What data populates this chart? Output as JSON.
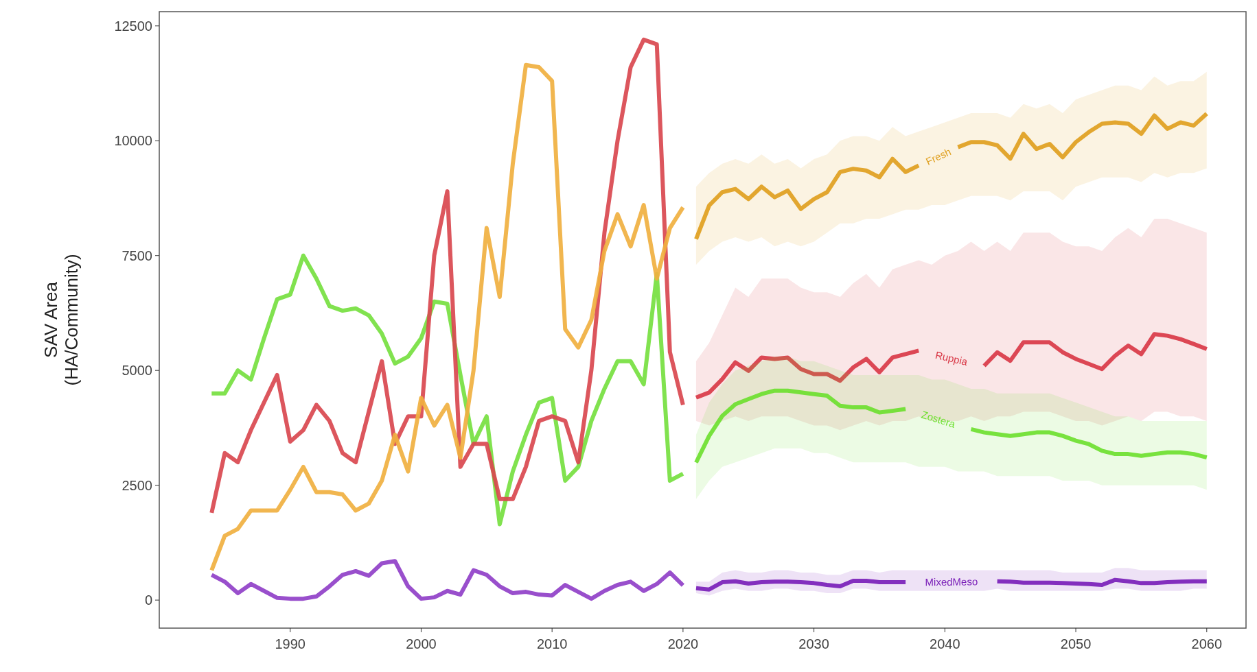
{
  "chart_data": {
    "type": "line",
    "ylabel": "SAV Area\n(HA/Community)",
    "xlim": [
      1980,
      2063
    ],
    "ylim": [
      -610,
      12810
    ],
    "xticks": [
      1990,
      2000,
      2010,
      2020,
      2030,
      2040,
      2050,
      2060
    ],
    "yticks": [
      0,
      2500,
      5000,
      7500,
      10000,
      12500
    ],
    "grid": false,
    "series": [
      {
        "color": "#76e040",
        "x": [
          1984,
          1985,
          1986,
          1987,
          1988,
          1989,
          1990,
          1991,
          1992,
          1993,
          1994,
          1995,
          1996,
          1997,
          1998,
          1999,
          2000,
          2001,
          2002,
          2003,
          2004,
          2005,
          2006,
          2007,
          2008,
          2009,
          2010,
          2011,
          2012,
          2013,
          2014,
          2015,
          2016,
          2017,
          2018,
          2019,
          2020
        ],
        "values": [
          4500,
          4500,
          5000,
          4800,
          5700,
          6550,
          6650,
          7500,
          7000,
          6400,
          6300,
          6350,
          6200,
          5800,
          5150,
          5300,
          5700,
          6500,
          6450,
          4900,
          3400,
          4000,
          1650,
          2800,
          3600,
          4300,
          4400,
          2600,
          2900,
          3900,
          4600,
          5200,
          5200,
          4700,
          7100,
          2600,
          2750
        ]
      },
      {
        "color": "#d9484f",
        "x": [
          1984,
          1985,
          1986,
          1987,
          1988,
          1989,
          1990,
          1991,
          1992,
          1993,
          1994,
          1995,
          1996,
          1997,
          1998,
          1999,
          2000,
          2001,
          2002,
          2003,
          2004,
          2005,
          2006,
          2007,
          2008,
          2009,
          2010,
          2011,
          2012,
          2013,
          2014,
          2015,
          2016,
          2017,
          2018,
          2019,
          2020
        ],
        "values": [
          1900,
          3200,
          3000,
          3700,
          4300,
          4900,
          3450,
          3700,
          4250,
          3900,
          3200,
          3000,
          4100,
          5200,
          3400,
          4000,
          4000,
          7500,
          8900,
          2900,
          3400,
          3400,
          2200,
          2200,
          2900,
          3900,
          4000,
          3900,
          3000,
          5000,
          8000,
          10000,
          11600,
          12200,
          12100,
          5400,
          4250
        ]
      },
      {
        "color": "#f0b040",
        "x": [
          1984,
          1985,
          1986,
          1987,
          1988,
          1989,
          1990,
          1991,
          1992,
          1993,
          1994,
          1995,
          1996,
          1997,
          1998,
          1999,
          2000,
          2001,
          2002,
          2003,
          2004,
          2005,
          2006,
          2007,
          2008,
          2009,
          2010,
          2011,
          2012,
          2013,
          2014,
          2015,
          2016,
          2017,
          2018,
          2019,
          2020
        ],
        "values": [
          650,
          1400,
          1550,
          1950,
          1950,
          1950,
          2400,
          2900,
          2350,
          2350,
          2300,
          1950,
          2100,
          2600,
          3600,
          2800,
          4400,
          3800,
          4250,
          3100,
          5000,
          8100,
          6600,
          9500,
          11650,
          11600,
          11300,
          5900,
          5500,
          6100,
          7600,
          8400,
          7700,
          8600,
          7000,
          8100,
          8550
        ]
      },
      {
        "color": "#9040c8",
        "x": [
          1984,
          1985,
          1986,
          1987,
          1988,
          1989,
          1990,
          1991,
          1992,
          1993,
          1994,
          1995,
          1996,
          1997,
          1998,
          1999,
          2000,
          2001,
          2002,
          2003,
          2004,
          2005,
          2006,
          2007,
          2008,
          2009,
          2010,
          2011,
          2012,
          2013,
          2014,
          2015,
          2016,
          2017,
          2018,
          2019,
          2020
        ],
        "values": [
          550,
          400,
          150,
          350,
          200,
          50,
          30,
          30,
          80,
          300,
          550,
          630,
          530,
          800,
          850,
          300,
          30,
          60,
          200,
          120,
          650,
          550,
          300,
          150,
          180,
          120,
          100,
          330,
          180,
          30,
          200,
          330,
          400,
          200,
          350,
          600,
          320
        ]
      },
      {
        "name": "Fresh",
        "color": "#e0a020",
        "x": [
          2021,
          2022,
          2023,
          2024,
          2025,
          2026,
          2027,
          2028,
          2029,
          2030,
          2031,
          2032,
          2033,
          2034,
          2035,
          2036,
          2037,
          2038,
          2039,
          2040,
          2041,
          2042,
          2043,
          2044,
          2045,
          2046,
          2047,
          2048,
          2049,
          2050,
          2051,
          2052,
          2053,
          2054,
          2055,
          2056,
          2057,
          2058,
          2059,
          2060
        ],
        "values": [
          7860,
          8590,
          8880,
          8950,
          8730,
          9000,
          8770,
          8915,
          8515,
          8730,
          8880,
          9320,
          9390,
          9350,
          9205,
          9605,
          9320,
          9460,
          null,
          null,
          9860,
          9970,
          9970,
          9900,
          9610,
          10150,
          9820,
          9930,
          9640,
          9970,
          10190,
          10370,
          10400,
          10370,
          10150,
          10550,
          10260,
          10400,
          10330,
          10590
        ],
        "lower": [
          7300,
          7600,
          7800,
          7900,
          7800,
          7900,
          7700,
          7800,
          7700,
          7800,
          8000,
          8200,
          8200,
          8300,
          8300,
          8400,
          8500,
          8500,
          8600,
          8600,
          8700,
          8800,
          8800,
          8800,
          8700,
          8900,
          8900,
          8900,
          8700,
          9000,
          9100,
          9200,
          9200,
          9200,
          9100,
          9300,
          9200,
          9300,
          9300,
          9400
        ],
        "upper": [
          9000,
          9300,
          9500,
          9600,
          9500,
          9700,
          9500,
          9600,
          9400,
          9600,
          9700,
          10000,
          10100,
          10100,
          10000,
          10300,
          10100,
          10200,
          10300,
          10400,
          10500,
          10600,
          10600,
          10600,
          10500,
          10800,
          10700,
          10800,
          10600,
          10900,
          11000,
          11100,
          11200,
          11200,
          11100,
          11400,
          11200,
          11300,
          11300,
          11500
        ]
      },
      {
        "name": "Ruppia",
        "color": "#d93a48",
        "x": [
          2021,
          2022,
          2023,
          2024,
          2025,
          2026,
          2027,
          2028,
          2029,
          2030,
          2031,
          2032,
          2033,
          2034,
          2035,
          2036,
          2037,
          2038,
          2039,
          2040,
          2041,
          2042,
          2043,
          2044,
          2045,
          2046,
          2047,
          2048,
          2049,
          2050,
          2051,
          2052,
          2053,
          2054,
          2055,
          2056,
          2057,
          2058,
          2059,
          2060
        ],
        "values": [
          4410,
          4520,
          4810,
          5175,
          4990,
          5280,
          5250,
          5280,
          5030,
          4920,
          4920,
          4775,
          5065,
          5250,
          4960,
          5280,
          5355,
          5430,
          null,
          null,
          null,
          null,
          5100,
          5395,
          5210,
          5610,
          5610,
          5610,
          5395,
          5250,
          5140,
          5030,
          5320,
          5540,
          5355,
          5790,
          5755,
          5680,
          5575,
          5465
        ],
        "lower": [
          3900,
          3800,
          3900,
          4000,
          3900,
          4000,
          4000,
          4000,
          3900,
          3800,
          3800,
          3700,
          3800,
          3900,
          3800,
          3900,
          3900,
          4000,
          3900,
          3900,
          3900,
          4000,
          3900,
          4000,
          4000,
          4100,
          4100,
          4100,
          4000,
          3900,
          3900,
          3800,
          3900,
          4000,
          3900,
          4100,
          4100,
          4000,
          4000,
          3900
        ],
        "upper": [
          5200,
          5600,
          6200,
          6800,
          6600,
          7000,
          7000,
          7000,
          6800,
          6700,
          6700,
          6600,
          6900,
          7100,
          6800,
          7200,
          7300,
          7400,
          7300,
          7500,
          7600,
          7800,
          7600,
          7800,
          7600,
          8000,
          8000,
          8000,
          7800,
          7700,
          7700,
          7600,
          7900,
          8100,
          7900,
          8300,
          8300,
          8200,
          8100,
          8000
        ]
      },
      {
        "name": "Zostera",
        "color": "#6ee030",
        "x": [
          2021,
          2022,
          2023,
          2024,
          2025,
          2026,
          2027,
          2028,
          2029,
          2030,
          2031,
          2032,
          2033,
          2034,
          2035,
          2036,
          2037,
          2038,
          2039,
          2040,
          2041,
          2042,
          2043,
          2044,
          2045,
          2046,
          2047,
          2048,
          2049,
          2050,
          2051,
          2052,
          2053,
          2054,
          2055,
          2056,
          2057,
          2058,
          2059,
          2060
        ],
        "values": [
          2995,
          3575,
          4010,
          4265,
          4375,
          4485,
          4560,
          4560,
          4520,
          4485,
          4450,
          4230,
          4195,
          4195,
          4085,
          4120,
          4160,
          null,
          null,
          null,
          null,
          3720,
          3650,
          3610,
          3575,
          3610,
          3650,
          3650,
          3575,
          3470,
          3395,
          3250,
          3180,
          3180,
          3140,
          3180,
          3215,
          3215,
          3180,
          3105
        ],
        "lower": [
          2200,
          2600,
          2900,
          3000,
          3100,
          3200,
          3300,
          3300,
          3300,
          3200,
          3200,
          3100,
          3000,
          3000,
          3000,
          3000,
          3000,
          2900,
          2900,
          2900,
          2800,
          2800,
          2800,
          2700,
          2700,
          2700,
          2700,
          2700,
          2600,
          2600,
          2600,
          2500,
          2500,
          2500,
          2500,
          2500,
          2500,
          2500,
          2500,
          2400
        ],
        "upper": [
          3600,
          4300,
          4700,
          5000,
          5100,
          5200,
          5300,
          5300,
          5200,
          5200,
          5100,
          5000,
          4900,
          4900,
          4900,
          4900,
          4900,
          4900,
          4800,
          4800,
          4700,
          4600,
          4600,
          4500,
          4500,
          4500,
          4500,
          4500,
          4400,
          4300,
          4200,
          4100,
          4000,
          4000,
          3900,
          3900,
          3900,
          3900,
          3900,
          3900
        ]
      },
      {
        "name": "MixedMeso",
        "color": "#7a1fb8",
        "x": [
          2021,
          2022,
          2023,
          2024,
          2025,
          2026,
          2027,
          2028,
          2029,
          2030,
          2031,
          2032,
          2033,
          2034,
          2035,
          2036,
          2037,
          2038,
          2039,
          2040,
          2041,
          2042,
          2043,
          2044,
          2045,
          2046,
          2047,
          2048,
          2049,
          2050,
          2051,
          2052,
          2053,
          2054,
          2055,
          2056,
          2057,
          2058,
          2059,
          2060
        ],
        "values": [
          260,
          230,
          390,
          410,
          360,
          390,
          400,
          400,
          390,
          370,
          330,
          300,
          420,
          420,
          390,
          390,
          390,
          null,
          null,
          null,
          null,
          null,
          null,
          410,
          400,
          380,
          380,
          380,
          370,
          360,
          350,
          330,
          440,
          410,
          370,
          370,
          390,
          400,
          410,
          410
        ],
        "lower": [
          150,
          100,
          200,
          250,
          200,
          200,
          250,
          250,
          200,
          200,
          150,
          150,
          250,
          250,
          200,
          200,
          200,
          200,
          200,
          200,
          200,
          200,
          200,
          250,
          200,
          200,
          200,
          200,
          200,
          200,
          200,
          200,
          250,
          250,
          200,
          200,
          200,
          200,
          250,
          250
        ],
        "upper": [
          400,
          400,
          600,
          650,
          600,
          600,
          650,
          650,
          600,
          600,
          550,
          550,
          650,
          650,
          600,
          650,
          650,
          650,
          650,
          650,
          650,
          650,
          650,
          650,
          650,
          650,
          650,
          650,
          600,
          600,
          600,
          600,
          700,
          700,
          650,
          650,
          650,
          650,
          650,
          650
        ]
      }
    ]
  }
}
